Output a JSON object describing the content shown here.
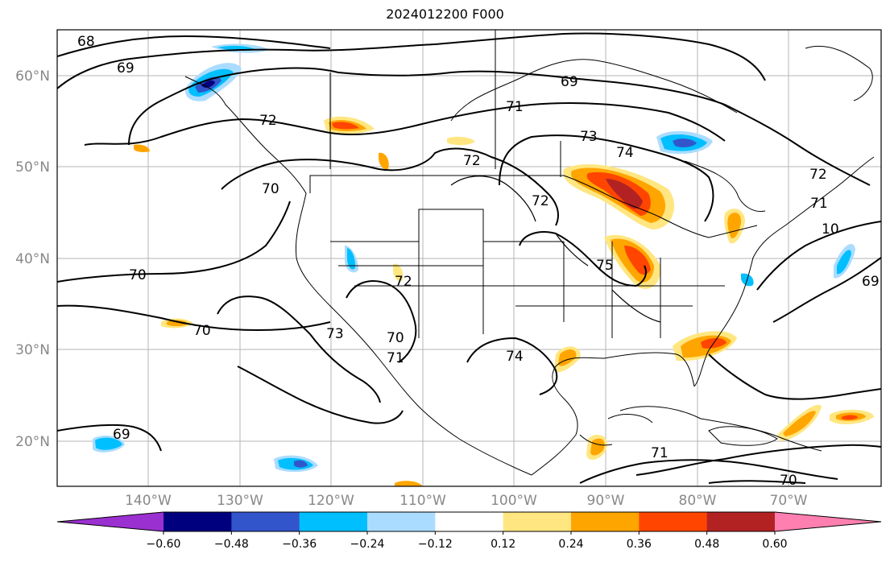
{
  "title": "2024012200 F000",
  "lat_labels": [
    "60°N",
    "50°N",
    "40°N",
    "30°N",
    "20°N"
  ],
  "lon_labels": [
    "140°W",
    "130°W",
    "120°W",
    "110°W",
    "100°W",
    "90°W",
    "80°W",
    "70°W"
  ],
  "colorbar": {
    "ticks": [
      "−0.60",
      "−0.48",
      "−0.36",
      "−0.24",
      "−0.12",
      "0.12",
      "0.24",
      "0.36",
      "0.48",
      "0.60"
    ],
    "colors": [
      "#9b30d0",
      "#00007f",
      "#3355cc",
      "#00bfff",
      "#aadcff",
      "#ffffff",
      "#ffe680",
      "#ffa500",
      "#ff4500",
      "#b22222",
      "#ff80b0"
    ]
  },
  "contour_labels": [
    "68",
    "69",
    "72",
    "70",
    "71",
    "69",
    "73",
    "74",
    "72",
    "70",
    "72",
    "75",
    "71",
    "72",
    "70",
    "73",
    "74",
    "70",
    "69",
    "69",
    "71",
    "70",
    "10",
    "71",
    "72"
  ]
}
